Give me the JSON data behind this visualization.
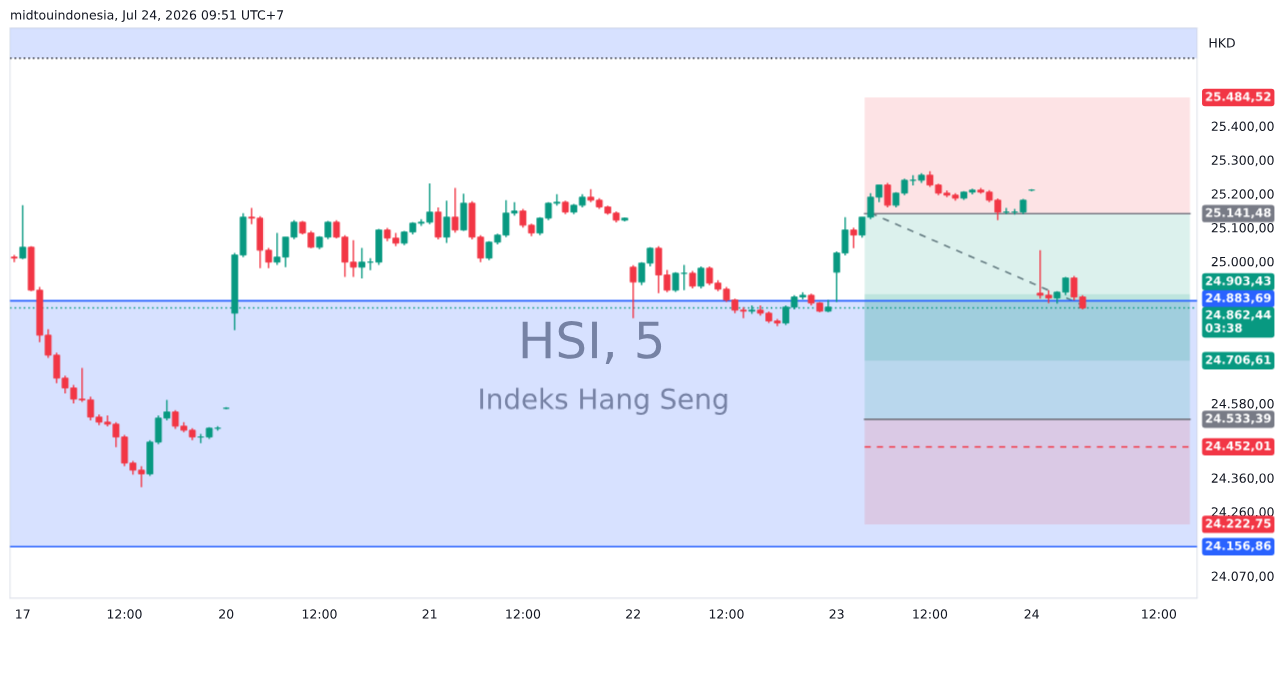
{
  "chart_data": {
    "type": "candlestick",
    "annotations": [
      "midtouindonesia, Jul 24, 2026 09:51 UTC+7",
      "HSI, 5",
      "Indeks Hang Seng",
      "HKD"
    ],
    "categories": [
      null,
      "17",
      null,
      null,
      null,
      null,
      null,
      null,
      null,
      null,
      null,
      null,
      null,
      "12:00",
      null,
      null,
      null,
      null,
      null,
      null,
      null,
      null,
      null,
      null,
      null,
      "20",
      null,
      null,
      null,
      null,
      null,
      null,
      null,
      null,
      null,
      null,
      "12:00",
      null,
      null,
      null,
      null,
      null,
      null,
      null,
      null,
      null,
      null,
      null,
      null,
      "21",
      null,
      null,
      null,
      null,
      null,
      null,
      null,
      null,
      null,
      null,
      "12:00",
      null,
      null,
      null,
      null,
      null,
      null,
      null,
      null,
      null,
      null,
      null,
      null,
      "22",
      null,
      null,
      null,
      null,
      null,
      null,
      null,
      null,
      null,
      null,
      "12:00",
      null,
      null,
      null,
      null,
      null,
      null,
      null,
      null,
      null,
      null,
      null,
      null,
      "23",
      null,
      null,
      null,
      null,
      null,
      null,
      null,
      null,
      null,
      null,
      "12:00",
      null,
      null,
      null,
      null,
      null,
      null,
      null,
      null,
      null,
      null,
      null,
      "24",
      null,
      null,
      null,
      null,
      null,
      null,
      null,
      null,
      null,
      null,
      null,
      null,
      null,
      null,
      "12:00",
      null,
      null,
      null,
      null
    ],
    "colors": [
      "#f23645",
      "#089981",
      "#f23645",
      "#f23645",
      "#f23645",
      "#f23645",
      "#f23645",
      "#f23645",
      "#f23645",
      "#f23645",
      "#f23645",
      "#f23645",
      "#f23645",
      "#f23645",
      "#f23645",
      "#f23645",
      "#089981",
      "#089981",
      "#089981",
      "#f23645",
      "#f23645",
      "#f23645",
      "#089981",
      "#089981",
      "#089981",
      "#089981",
      "#089981",
      "#089981",
      "#f23645",
      "#f23645",
      "#f23645",
      "#089981",
      "#089981",
      "#089981",
      "#f23645",
      "#f23645",
      "#089981",
      "#089981",
      "#f23645",
      "#f23645",
      "#f23645",
      "#089981",
      "#089981",
      "#089981",
      "#f23645",
      "#f23645",
      "#089981",
      "#089981",
      "#089981",
      "#089981",
      "#f23645",
      "#089981",
      "#f23645",
      "#089981",
      "#f23645",
      "#f23645",
      "#089981",
      "#089981",
      "#089981",
      "#089981",
      "#f23645",
      "#f23645",
      "#089981",
      "#089981",
      "#089981",
      "#f23645",
      "#089981",
      "#089981",
      "#f23645",
      "#f23645",
      "#f23645",
      "#f23645",
      "#089981",
      "#f23645",
      "#089981",
      "#089981",
      "#f23645",
      "#f23645",
      "#089981",
      "#089981",
      "#f23645",
      "#089981",
      "#f23645",
      "#f23645",
      "#f23645",
      "#f23645",
      "#f23645",
      "#089981",
      "#f23645",
      "#f23645",
      "#f23645",
      "#089981",
      "#089981",
      "#089981",
      "#f23645",
      "#f23645",
      "#089981",
      "#089981",
      "#089981",
      "#f23645",
      "#089981",
      "#089981",
      "#089981",
      "#f23645",
      "#089981",
      "#089981",
      "#089981",
      "#089981",
      "#f23645",
      "#f23645",
      "#f23645",
      "#f23645",
      "#089981",
      "#089981",
      "#f23645",
      "#f23645",
      "#f23645",
      "#089981",
      "#089981",
      "#089981",
      "#089981",
      "#f23645",
      "#f23645",
      "#089981",
      "#089981",
      "#f23645",
      "#f23645",
      null,
      null,
      null,
      null,
      null,
      null,
      null,
      null,
      null,
      null,
      null,
      null,
      null
    ],
    "ohlc": [
      [
        25013,
        25019,
        24998,
        25010
      ],
      [
        25010,
        25166,
        25007,
        25042
      ],
      [
        25042,
        25045,
        24912,
        24915
      ],
      [
        24915,
        24925,
        24761,
        24782
      ],
      [
        24782,
        24800,
        24715,
        24723
      ],
      [
        24723,
        24730,
        24640,
        24655
      ],
      [
        24655,
        24662,
        24610,
        24626
      ],
      [
        24626,
        24635,
        24580,
        24593
      ],
      [
        24593,
        24685,
        24585,
        24591
      ],
      [
        24591,
        24600,
        24530,
        24540
      ],
      [
        24540,
        24548,
        24516,
        24525
      ],
      [
        24525,
        24545,
        24512,
        24519
      ],
      [
        24519,
        24525,
        24451,
        24481
      ],
      [
        24481,
        24487,
        24395,
        24404
      ],
      [
        24404,
        24410,
        24370,
        24383
      ],
      [
        24383,
        24395,
        24333,
        24372
      ],
      [
        24372,
        24472,
        24366,
        24466
      ],
      [
        24466,
        24545,
        24460,
        24537
      ],
      [
        24537,
        24591,
        24530,
        24555
      ],
      [
        24555,
        24560,
        24505,
        24513
      ],
      [
        24513,
        24525,
        24495,
        24501
      ],
      [
        24501,
        24507,
        24472,
        24481
      ],
      [
        24481,
        24490,
        24463,
        24481
      ],
      [
        24481,
        24510,
        24475,
        24507
      ],
      [
        24507,
        24513,
        24500,
        24507
      ],
      [
        24566,
        24569,
        24563,
        24566
      ],
      [
        24847,
        25025,
        24797,
        25019
      ],
      [
        25019,
        25143,
        25013,
        25131
      ],
      [
        25131,
        25158,
        25110,
        25128
      ],
      [
        25128,
        25134,
        24980,
        25033
      ],
      [
        25033,
        25040,
        24980,
        24998
      ],
      [
        24998,
        25084,
        24990,
        25013
      ],
      [
        25013,
        25072,
        24983,
        25072
      ],
      [
        25072,
        25122,
        25066,
        25116
      ],
      [
        25116,
        25120,
        25080,
        25084
      ],
      [
        25084,
        25090,
        25039,
        25042
      ],
      [
        25042,
        25075,
        25036,
        25072
      ],
      [
        25072,
        25120,
        25066,
        25116
      ],
      [
        25116,
        25122,
        25068,
        25072
      ],
      [
        25072,
        25078,
        24954,
        24998
      ],
      [
        24998,
        25063,
        24954,
        24983
      ],
      [
        24983,
        25040,
        24950,
        24998
      ],
      [
        24998,
        25010,
        24974,
        24998
      ],
      [
        24998,
        25096,
        24990,
        25093
      ],
      [
        25093,
        25099,
        25060,
        25069
      ],
      [
        25069,
        25084,
        25045,
        25054
      ],
      [
        25054,
        25090,
        25048,
        25087
      ],
      [
        25087,
        25116,
        25080,
        25113
      ],
      [
        25113,
        25125,
        25105,
        25116
      ],
      [
        25116,
        25231,
        25110,
        25146
      ],
      [
        25146,
        25160,
        25065,
        25072
      ],
      [
        25072,
        25180,
        25055,
        25131
      ],
      [
        25131,
        25217,
        25085,
        25093
      ],
      [
        25093,
        25200,
        25090,
        25172
      ],
      [
        25172,
        25178,
        25065,
        25072
      ],
      [
        25072,
        25078,
        24998,
        25010
      ],
      [
        25010,
        25060,
        25004,
        25057
      ],
      [
        25057,
        25082,
        25050,
        25078
      ],
      [
        25078,
        25181,
        25072,
        25143
      ],
      [
        25143,
        25175,
        25135,
        25149
      ],
      [
        25149,
        25155,
        25100,
        25107
      ],
      [
        25107,
        25112,
        25075,
        25084
      ],
      [
        25084,
        25131,
        25078,
        25128
      ],
      [
        25128,
        25175,
        25122,
        25172
      ],
      [
        25172,
        25199,
        25165,
        25175
      ],
      [
        25175,
        25180,
        25140,
        25146
      ],
      [
        25146,
        25170,
        25140,
        25166
      ],
      [
        25166,
        25199,
        25160,
        25190
      ],
      [
        25190,
        25214,
        25175,
        25181
      ],
      [
        25181,
        25187,
        25155,
        25161
      ],
      [
        25161,
        25165,
        25138,
        25143
      ],
      [
        25143,
        25148,
        25115,
        25122
      ],
      [
        25122,
        25130,
        25118,
        25128
      ],
      [
        24983,
        24989,
        24832,
        24939
      ],
      [
        24939,
        24998,
        24930,
        24995
      ],
      [
        24995,
        25042,
        24985,
        25039
      ],
      [
        25039,
        25045,
        24906,
        24960
      ],
      [
        24960,
        24975,
        24909,
        24915
      ],
      [
        24915,
        24968,
        24910,
        24965
      ],
      [
        24965,
        24990,
        24915,
        24965
      ],
      [
        24965,
        24972,
        24920,
        24927
      ],
      [
        24927,
        24985,
        24920,
        24980
      ],
      [
        24980,
        24985,
        24930,
        24936
      ],
      [
        24936,
        24945,
        24912,
        24918
      ],
      [
        24918,
        24925,
        24880,
        24886
      ],
      [
        24886,
        24890,
        24847,
        24856
      ],
      [
        24856,
        24865,
        24832,
        24853
      ],
      [
        24853,
        24870,
        24845,
        24856
      ],
      [
        24856,
        24870,
        24840,
        24847
      ],
      [
        24847,
        24852,
        24818,
        24824
      ],
      [
        24824,
        24830,
        24809,
        24818
      ],
      [
        24818,
        24870,
        24812,
        24865
      ],
      [
        24865,
        24900,
        24858,
        24895
      ],
      [
        24895,
        24909,
        24888,
        24900
      ],
      [
        24900,
        24905,
        24870,
        24877
      ],
      [
        24877,
        24880,
        24850,
        24853
      ],
      [
        24853,
        24886,
        24850,
        24865
      ],
      [
        24968,
        25030,
        24880,
        25025
      ],
      [
        25025,
        25131,
        25018,
        25093
      ],
      [
        25093,
        25100,
        25039,
        25078
      ],
      [
        25078,
        25131,
        25070,
        25131
      ],
      [
        25131,
        25202,
        25125,
        25190
      ],
      [
        25190,
        25226,
        25175,
        25226
      ],
      [
        25226,
        25232,
        25160,
        25166
      ],
      [
        25166,
        25205,
        25160,
        25202
      ],
      [
        25202,
        25245,
        25196,
        25240
      ],
      [
        25240,
        25255,
        25225,
        25240
      ],
      [
        25240,
        25261,
        25232,
        25255
      ],
      [
        25255,
        25267,
        25220,
        25226
      ],
      [
        25226,
        25230,
        25196,
        25202
      ],
      [
        25202,
        25210,
        25190,
        25196
      ],
      [
        25196,
        25202,
        25180,
        25187
      ],
      [
        25187,
        25208,
        25182,
        25205
      ],
      [
        25205,
        25215,
        25198,
        25211
      ],
      [
        25211,
        25217,
        25200,
        25205
      ],
      [
        25205,
        25211,
        25175,
        25181
      ],
      [
        25181,
        25186,
        25122,
        25146
      ],
      [
        25146,
        25158,
        25140,
        25146
      ],
      [
        25146,
        25155,
        25138,
        25146
      ],
      [
        25146,
        25185,
        25140,
        25181
      ],
      [
        25211,
        25214,
        25208,
        25211
      ],
      [
        24906,
        25033,
        24890,
        24900
      ],
      [
        24900,
        24915,
        24877,
        24892
      ],
      [
        24892,
        24912,
        24875,
        24909
      ],
      [
        24909,
        24954,
        24900,
        24951
      ],
      [
        24951,
        24957,
        24885,
        24895
      ],
      [
        24895,
        24900,
        24858,
        24862.44
      ],
      null,
      null,
      null,
      null,
      null,
      null,
      null,
      null,
      null,
      null,
      null,
      null,
      null
    ],
    "series": [
      {
        "type": "line",
        "color": "#787b86",
        "line_style": "dashed",
        "values": [
          null,
          null,
          null,
          null,
          null,
          null,
          null,
          null,
          null,
          null,
          null,
          null,
          null,
          null,
          null,
          null,
          null,
          null,
          null,
          null,
          null,
          null,
          null,
          null,
          null,
          null,
          null,
          null,
          null,
          null,
          null,
          null,
          null,
          null,
          null,
          null,
          null,
          null,
          null,
          null,
          null,
          null,
          null,
          null,
          null,
          null,
          null,
          null,
          null,
          null,
          null,
          null,
          null,
          null,
          null,
          null,
          null,
          null,
          null,
          null,
          null,
          null,
          null,
          null,
          null,
          null,
          null,
          null,
          null,
          null,
          null,
          null,
          null,
          null,
          null,
          null,
          null,
          null,
          null,
          null,
          null,
          null,
          null,
          null,
          null,
          null,
          null,
          null,
          null,
          null,
          null,
          null,
          null,
          null,
          null,
          null,
          null,
          null,
          null,
          null,
          null,
          25143,
          null,
          null,
          null,
          null,
          null,
          null,
          null,
          null,
          null,
          null,
          null,
          null,
          null,
          null,
          null,
          null,
          null,
          null,
          null,
          null,
          null,
          null,
          null,
          null,
          24871,
          null,
          null,
          null,
          null,
          null,
          null,
          null,
          null,
          null,
          null,
          null,
          null,
          null
        ]
      }
    ],
    "ylim": [
      24005,
      25690
    ],
    "yticks": [
      {
        "value": 25400,
        "label": "25.400,00"
      },
      {
        "value": 25300,
        "label": "25.300,00"
      },
      {
        "value": 25200,
        "label": "25.200,00"
      },
      {
        "value": 25100,
        "label": "25.100,00"
      },
      {
        "value": 25000,
        "label": "25.000,00"
      },
      {
        "value": 24580,
        "label": "24.580,00"
      },
      {
        "value": 24360,
        "label": "24.360,00"
      },
      {
        "value": 24260,
        "label": "24.260,00"
      },
      {
        "value": 24070,
        "label": "24.070,00"
      }
    ],
    "bands": [
      {
        "axis": "y",
        "from": 24883.69,
        "to": 24156.86,
        "label": null,
        "color": "#2962ff"
      },
      {
        "axis": "y",
        "from": 25601,
        "to": 25690,
        "label": null,
        "color": "#2962ff"
      },
      {
        "axis": "y",
        "from": 25141.48,
        "to": 25484.52,
        "label": "25.484,52",
        "color": "#f23645"
      },
      {
        "axis": "y",
        "from": 25141.48,
        "to": 24706.61,
        "label": "24.706,61",
        "color": "#089981"
      },
      {
        "axis": "y",
        "from": 24533.39,
        "to": 24903.43,
        "label": "24.903,43",
        "color": "#089981"
      },
      {
        "axis": "y",
        "from": 24533.39,
        "to": 24222.75,
        "label": "24.222,75",
        "color": "#f23645"
      }
    ],
    "ref_lines": [
      {
        "axis": "y",
        "value": 24883.69,
        "label": "24.883,69",
        "color": "#2962ff",
        "line_style": "solid"
      },
      {
        "axis": "y",
        "value": 24156.86,
        "label": "24.156,86",
        "color": "#2962ff",
        "line_style": "solid"
      },
      {
        "axis": "y",
        "value": 24862.44,
        "label": "24.862,44\n03:38",
        "color": "#089981",
        "line_style": "dotted"
      },
      {
        "axis": "y",
        "value": 25601,
        "label": null,
        "color": "#131722",
        "line_style": "dotted"
      },
      {
        "axis": "y",
        "value": 25141.48,
        "label": "25.141,48",
        "color": "#787b86",
        "line_style": "solid"
      },
      {
        "axis": "y",
        "value": 24533.39,
        "label": "24.533,39",
        "color": "#787b86",
        "line_style": "solid"
      },
      {
        "axis": "y",
        "value": 24452.01,
        "label": "24.452,01",
        "color": "#f23645",
        "line_style": "dashed"
      }
    ]
  }
}
